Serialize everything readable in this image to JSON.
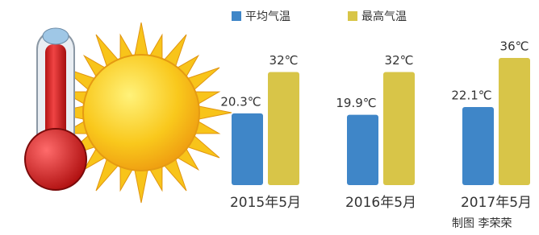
{
  "chart_data": {
    "type": "bar",
    "categories": [
      "2015年5月",
      "2016年5月",
      "2017年5月"
    ],
    "series": [
      {
        "name": "平均气温",
        "color": "#3f86c8",
        "values": [
          20.3,
          19.9,
          22.1
        ],
        "value_labels": [
          "20.3℃",
          "19.9℃",
          "22.1℃"
        ]
      },
      {
        "name": "最高气温",
        "color": "#d8c548",
        "values": [
          32,
          32,
          36
        ],
        "value_labels": [
          "32℃",
          "32℃",
          "36℃"
        ]
      }
    ],
    "credit": "制图 李荣荣"
  }
}
